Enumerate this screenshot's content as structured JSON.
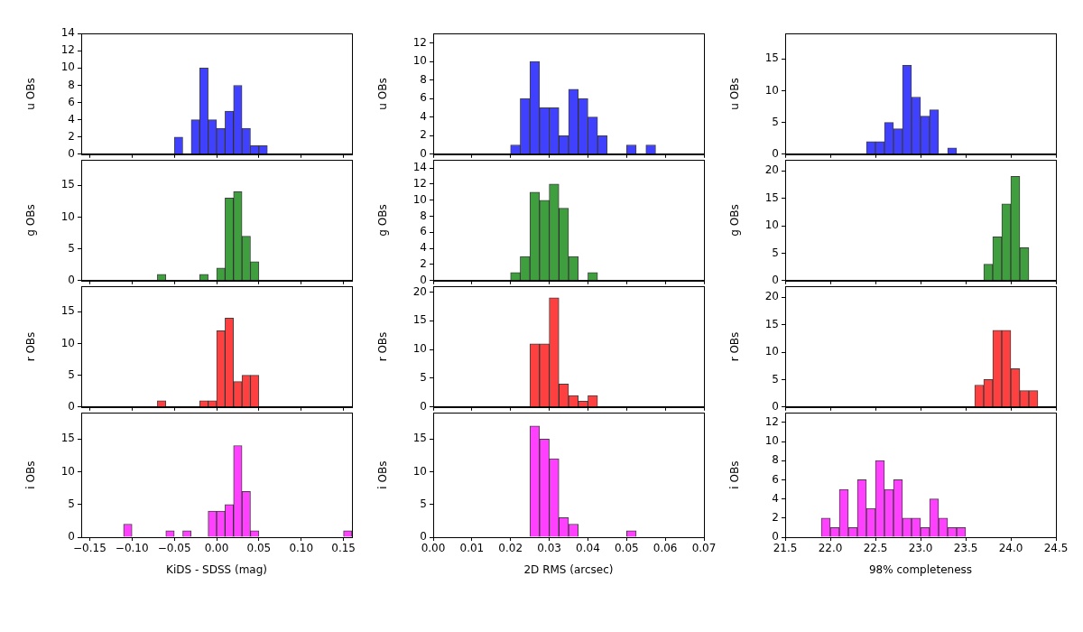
{
  "chart_data": [
    {
      "type": "histogram",
      "ylabel": "u OBs",
      "color": "#4040ff",
      "grid": false,
      "tick_labels": "y",
      "bins": [
        -0.05,
        -0.04,
        -0.03,
        -0.02,
        -0.01,
        0,
        0.01,
        0.02,
        0.03,
        0.04,
        0.05,
        0.06
      ],
      "values": [
        2,
        0,
        4,
        10,
        4,
        3,
        5,
        8,
        3,
        1,
        1
      ],
      "xlim": [
        -0.16,
        0.16
      ],
      "xticks": [
        {
          "value": -0.15,
          "label": "−0.15"
        },
        {
          "value": -0.1,
          "label": "−0.10"
        },
        {
          "value": -0.05,
          "label": "−0.05"
        },
        {
          "value": 0,
          "label": "0.00"
        },
        0.05,
        {
          "value": 0.1,
          "label": "0.10"
        },
        0.15
      ],
      "ylim": [
        0,
        14
      ],
      "yticks": [
        0,
        2,
        4,
        6,
        8,
        10,
        12,
        14
      ]
    },
    {
      "type": "histogram",
      "ylabel": "u OBs",
      "color": "#4040ff",
      "grid": false,
      "tick_labels": "y",
      "bins": [
        0.02,
        0.0225,
        0.025,
        0.0275,
        0.03,
        0.0325,
        0.035,
        0.0375,
        0.04,
        0.0425,
        0.045,
        0.0475,
        0.05,
        0.0525,
        0.055,
        0.0575
      ],
      "values": [
        1,
        6,
        10,
        5,
        5,
        2,
        7,
        6,
        4,
        2,
        0,
        0,
        1,
        0,
        1
      ],
      "xlim": [
        0,
        0.07
      ],
      "xticks": [
        {
          "value": 0,
          "label": "0.00"
        },
        0.01,
        0.02,
        0.03,
        0.04,
        0.05,
        0.06,
        0.07
      ],
      "ylim": [
        0,
        13
      ],
      "yticks": [
        0,
        2,
        4,
        6,
        8,
        10,
        12
      ]
    },
    {
      "type": "histogram",
      "ylabel": "u OBs",
      "color": "#4040ff",
      "grid": false,
      "tick_labels": "y",
      "bins": [
        22.4,
        22.5,
        22.6,
        22.7,
        22.8,
        22.9,
        23.0,
        23.1,
        23.2,
        23.3,
        23.4
      ],
      "values": [
        2,
        2,
        5,
        4,
        14,
        9,
        6,
        7,
        0,
        1
      ],
      "xlim": [
        21.5,
        24.5
      ],
      "xticks": [
        21.5,
        {
          "value": 22,
          "label": "22.0"
        },
        22.5,
        {
          "value": 23,
          "label": "23.0"
        },
        23.5,
        {
          "value": 24,
          "label": "24.0"
        },
        24.5
      ],
      "ylim": [
        0,
        19
      ],
      "yticks": [
        0,
        5,
        10,
        15
      ]
    },
    {
      "type": "histogram",
      "ylabel": "g OBs",
      "color": "#3f9f3f",
      "grid": false,
      "tick_labels": "y",
      "bins": [
        -0.07,
        -0.06,
        -0.05,
        -0.04,
        -0.03,
        -0.02,
        -0.01,
        0,
        0.01,
        0.02,
        0.03,
        0.04,
        0.05
      ],
      "values": [
        1,
        0,
        0,
        0,
        0,
        1,
        0,
        2,
        13,
        14,
        7,
        3
      ],
      "xlim": [
        -0.16,
        0.16
      ],
      "xticks": [
        {
          "value": -0.15,
          "label": "−0.15"
        },
        {
          "value": -0.1,
          "label": "−0.10"
        },
        {
          "value": -0.05,
          "label": "−0.05"
        },
        {
          "value": 0,
          "label": "0.00"
        },
        0.05,
        {
          "value": 0.1,
          "label": "0.10"
        },
        0.15
      ],
      "ylim": [
        0,
        19
      ],
      "yticks": [
        0,
        5,
        10,
        15
      ]
    },
    {
      "type": "histogram",
      "ylabel": "g OBs",
      "color": "#3f9f3f",
      "grid": false,
      "tick_labels": "y",
      "bins": [
        0.02,
        0.0225,
        0.025,
        0.0275,
        0.03,
        0.0325,
        0.035,
        0.0375,
        0.04,
        0.0425
      ],
      "values": [
        1,
        3,
        11,
        10,
        12,
        9,
        3,
        0,
        1
      ],
      "xlim": [
        0,
        0.07
      ],
      "xticks": [
        {
          "value": 0,
          "label": "0.00"
        },
        0.01,
        0.02,
        0.03,
        0.04,
        0.05,
        0.06,
        0.07
      ],
      "ylim": [
        0,
        15
      ],
      "yticks": [
        0,
        2,
        4,
        6,
        8,
        10,
        12,
        14
      ]
    },
    {
      "type": "histogram",
      "ylabel": "g OBs",
      "color": "#3f9f3f",
      "grid": false,
      "tick_labels": "y",
      "bins": [
        23.7,
        23.8,
        23.9,
        24.0,
        24.1,
        24.2
      ],
      "values": [
        3,
        8,
        14,
        19,
        6
      ],
      "xlim": [
        21.5,
        24.5
      ],
      "xticks": [
        21.5,
        {
          "value": 22,
          "label": "22.0"
        },
        22.5,
        {
          "value": 23,
          "label": "23.0"
        },
        23.5,
        {
          "value": 24,
          "label": "24.0"
        },
        24.5
      ],
      "ylim": [
        0,
        22
      ],
      "yticks": [
        0,
        5,
        10,
        15,
        20
      ]
    },
    {
      "type": "histogram",
      "ylabel": "r OBs",
      "color": "#ff4040",
      "grid": false,
      "tick_labels": "y",
      "bins": [
        -0.07,
        -0.06,
        -0.05,
        -0.04,
        -0.03,
        -0.02,
        -0.01,
        0,
        0.01,
        0.02,
        0.03,
        0.04,
        0.05
      ],
      "values": [
        1,
        0,
        0,
        0,
        0,
        1,
        1,
        12,
        14,
        4,
        5,
        5
      ],
      "xlim": [
        -0.16,
        0.16
      ],
      "xticks": [
        {
          "value": -0.15,
          "label": "−0.15"
        },
        {
          "value": -0.1,
          "label": "−0.10"
        },
        {
          "value": -0.05,
          "label": "−0.05"
        },
        {
          "value": 0,
          "label": "0.00"
        },
        0.05,
        {
          "value": 0.1,
          "label": "0.10"
        },
        0.15
      ],
      "ylim": [
        0,
        19
      ],
      "yticks": [
        0,
        5,
        10,
        15
      ]
    },
    {
      "type": "histogram",
      "ylabel": "r OBs",
      "color": "#ff4040",
      "grid": false,
      "tick_labels": "y",
      "bins": [
        0.025,
        0.0275,
        0.03,
        0.0325,
        0.035,
        0.0375,
        0.04,
        0.0425
      ],
      "values": [
        11,
        11,
        19,
        4,
        2,
        1,
        2
      ],
      "xlim": [
        0,
        0.07
      ],
      "xticks": [
        {
          "value": 0,
          "label": "0.00"
        },
        0.01,
        0.02,
        0.03,
        0.04,
        0.05,
        0.06,
        0.07
      ],
      "ylim": [
        0,
        21
      ],
      "yticks": [
        0,
        5,
        10,
        15,
        20
      ]
    },
    {
      "type": "histogram",
      "ylabel": "r OBs",
      "color": "#ff4040",
      "grid": false,
      "tick_labels": "y",
      "bins": [
        23.6,
        23.7,
        23.8,
        23.9,
        24.0,
        24.1,
        24.2,
        24.3
      ],
      "values": [
        4,
        5,
        14,
        14,
        7,
        3,
        3
      ],
      "xlim": [
        21.5,
        24.5
      ],
      "xticks": [
        21.5,
        {
          "value": 22,
          "label": "22.0"
        },
        22.5,
        {
          "value": 23,
          "label": "23.0"
        },
        23.5,
        {
          "value": 24,
          "label": "24.0"
        },
        24.5
      ],
      "ylim": [
        0,
        22
      ],
      "yticks": [
        0,
        5,
        10,
        15,
        20
      ]
    },
    {
      "type": "histogram",
      "ylabel": "i OBs",
      "xlabel": "KiDS - SDSS (mag)",
      "color": "#ff40ff",
      "grid": false,
      "bins": [
        -0.11,
        -0.1,
        -0.09,
        -0.08,
        -0.07,
        -0.06,
        -0.05,
        -0.04,
        -0.03,
        -0.02,
        -0.01,
        0,
        0.01,
        0.02,
        0.03,
        0.04,
        0.05,
        0.06,
        0.07,
        0.08,
        0.09,
        0.1,
        0.11,
        0.12,
        0.13,
        0.14,
        0.15,
        0.16
      ],
      "values": [
        2,
        0,
        0,
        0,
        0,
        1,
        0,
        1,
        0,
        0,
        4,
        4,
        5,
        14,
        7,
        1,
        0,
        0,
        0,
        0,
        0,
        0,
        0,
        0,
        0,
        0,
        1
      ],
      "xlim": [
        -0.16,
        0.16
      ],
      "xticks": [
        {
          "value": -0.15,
          "label": "−0.15"
        },
        {
          "value": -0.1,
          "label": "−0.10"
        },
        {
          "value": -0.05,
          "label": "−0.05"
        },
        {
          "value": 0,
          "label": "0.00"
        },
        0.05,
        {
          "value": 0.1,
          "label": "0.10"
        },
        0.15
      ],
      "ylim": [
        0,
        19
      ],
      "yticks": [
        0,
        5,
        10,
        15
      ]
    },
    {
      "type": "histogram",
      "ylabel": "i OBs",
      "xlabel": "2D RMS (arcsec)",
      "color": "#ff40ff",
      "grid": false,
      "bins": [
        0.025,
        0.0275,
        0.03,
        0.0325,
        0.035,
        0.0375,
        0.04,
        0.0425,
        0.045,
        0.0475,
        0.05,
        0.0525
      ],
      "values": [
        17,
        15,
        12,
        3,
        2,
        0,
        0,
        0,
        0,
        0,
        1
      ],
      "xlim": [
        0,
        0.07
      ],
      "xticks": [
        {
          "value": 0,
          "label": "0.00"
        },
        0.01,
        0.02,
        0.03,
        0.04,
        0.05,
        0.06,
        0.07
      ],
      "ylim": [
        0,
        19
      ],
      "yticks": [
        0,
        5,
        10,
        15
      ]
    },
    {
      "type": "histogram",
      "ylabel": "i OBs",
      "xlabel": "98% completeness",
      "color": "#ff40ff",
      "grid": false,
      "bins": [
        21.9,
        22.0,
        22.1,
        22.2,
        22.3,
        22.4,
        22.5,
        22.6,
        22.7,
        22.8,
        22.9,
        23.0,
        23.1,
        23.2,
        23.3,
        23.4,
        23.5
      ],
      "values": [
        2,
        1,
        5,
        1,
        6,
        3,
        8,
        5,
        6,
        2,
        2,
        1,
        4,
        2,
        1,
        1
      ],
      "xlim": [
        21.5,
        24.5
      ],
      "xticks": [
        21.5,
        {
          "value": 22,
          "label": "22.0"
        },
        22.5,
        {
          "value": 23,
          "label": "23.0"
        },
        23.5,
        {
          "value": 24,
          "label": "24.0"
        },
        24.5
      ],
      "ylim": [
        0,
        13
      ],
      "yticks": [
        0,
        2,
        4,
        6,
        8,
        10,
        12
      ]
    }
  ]
}
